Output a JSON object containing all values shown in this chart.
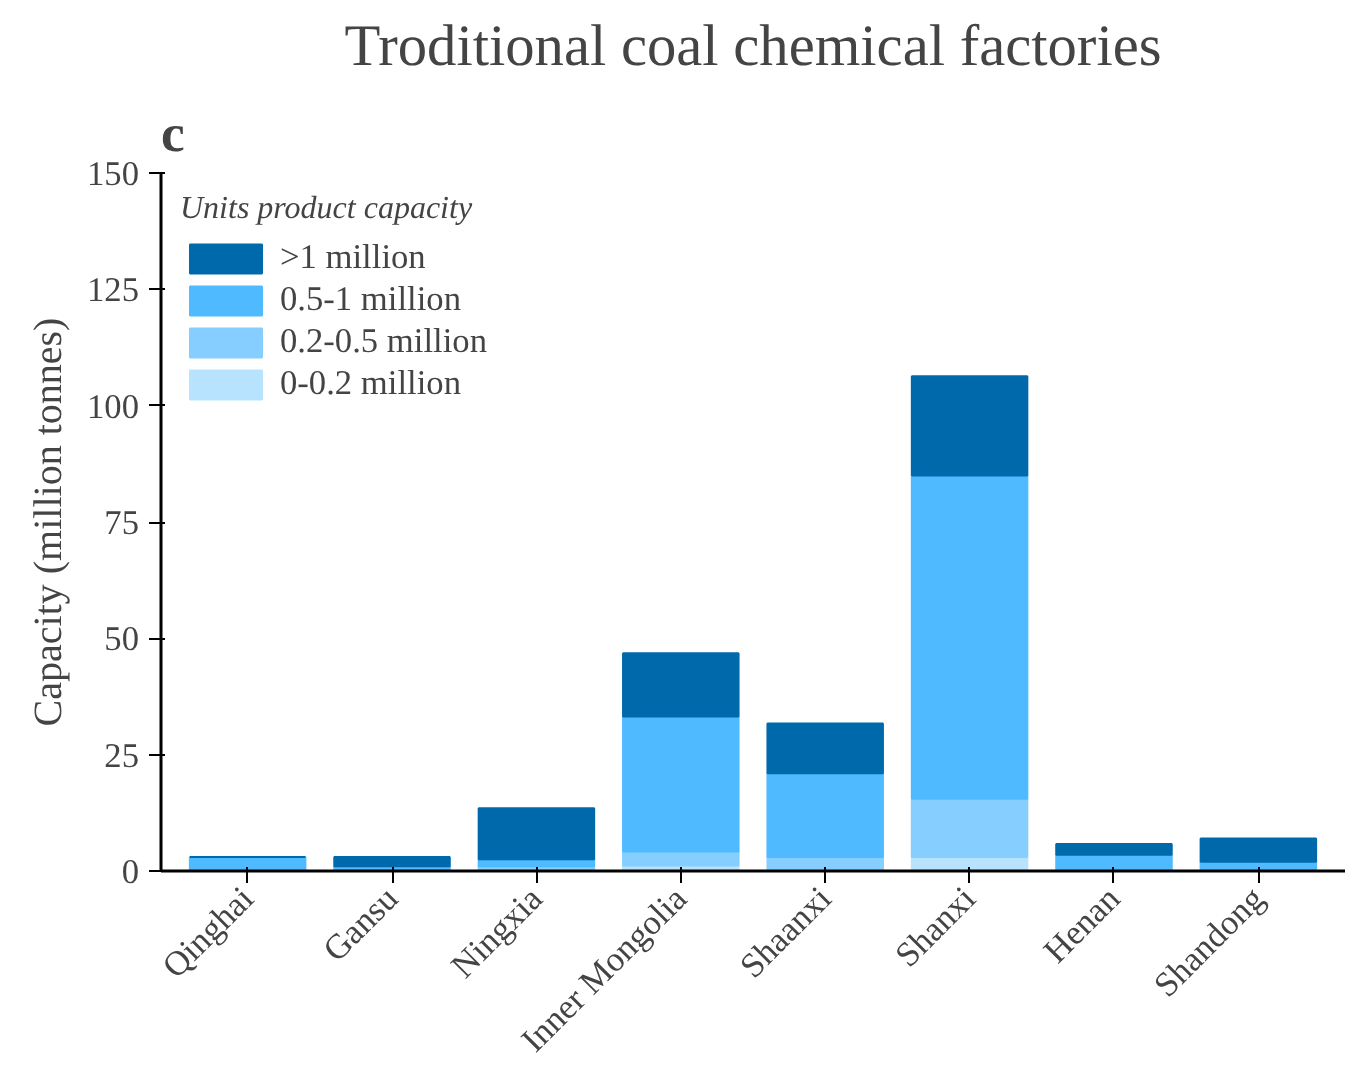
{
  "chart_data": {
    "type": "bar",
    "title": "Troditional coal chemical factories",
    "ylabel": "Capacity (million tonnes)",
    "legend_title": "Units product capacity",
    "annotations": [
      "c"
    ],
    "categories": [
      "Qinghai",
      "Gansu",
      "Ningxia",
      "Inner Mongolia",
      "Shaanxi",
      "Shanxi",
      "Henan",
      "Shandong"
    ],
    "stacked": true,
    "series": [
      {
        "name": "0-0.2 million",
        "color": "#b7e3ff",
        "values": [
          0,
          0,
          null,
          1.2,
          0,
          3,
          0,
          null
        ]
      },
      {
        "name": "0.2-0.5 million",
        "color": "#85ceff",
        "values": [
          0,
          0,
          1,
          3,
          3,
          12.5,
          0,
          0
        ]
      },
      {
        "name": "0.5-1 million",
        "color": "#4fbaff",
        "values": [
          3,
          1,
          1.5,
          29,
          18,
          69.5,
          3.5,
          2
        ]
      },
      {
        "name": ">1 million",
        "color": "#0069ab",
        "values": [
          0,
          2,
          11,
          13.6,
          10.7,
          21.3,
          2.3,
          5
        ]
      }
    ],
    "ylim": [
      0,
      150
    ],
    "yticks": [
      0,
      25,
      50,
      75,
      100,
      125,
      150
    ],
    "grid": false,
    "legend": "top left"
  }
}
